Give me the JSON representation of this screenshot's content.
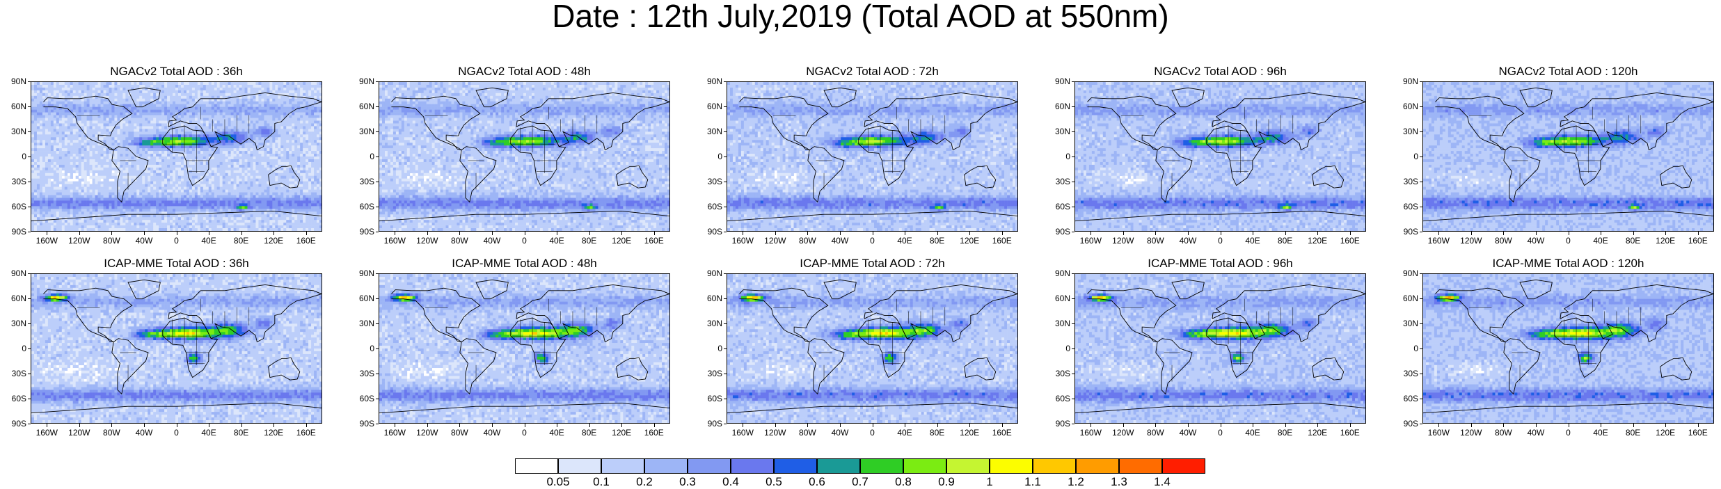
{
  "title": "Date : 12th July,2019 (Total AOD at 550nm)",
  "lat_labels": [
    "90N",
    "60N",
    "30N",
    "0",
    "30S",
    "60S",
    "90S"
  ],
  "lon_labels": [
    "160W",
    "120W",
    "80W",
    "40W",
    "0",
    "40E",
    "80E",
    "120E",
    "160E"
  ],
  "panels": [
    {
      "title": "NGACv2 Total AOD : 36h"
    },
    {
      "title": "NGACv2 Total AOD : 48h"
    },
    {
      "title": "NGACv2 Total AOD : 72h"
    },
    {
      "title": "NGACv2 Total AOD : 96h"
    },
    {
      "title": "NGACv2 Total AOD : 120h"
    },
    {
      "title": "ICAP-MME Total AOD : 36h"
    },
    {
      "title": "ICAP-MME Total AOD : 48h"
    },
    {
      "title": "ICAP-MME Total AOD : 72h"
    },
    {
      "title": "ICAP-MME Total AOD : 96h"
    },
    {
      "title": "ICAP-MME Total AOD : 120h"
    }
  ],
  "colorbar": {
    "labels": [
      "0.05",
      "0.1",
      "0.2",
      "0.3",
      "0.4",
      "0.5",
      "0.6",
      "0.7",
      "0.8",
      "0.9",
      "1",
      "1.1",
      "1.2",
      "1.3",
      "1.4"
    ],
    "colors": [
      "#ffffff",
      "#dce6fb",
      "#bccefa",
      "#9db5f6",
      "#8299f2",
      "#6a78ee",
      "#1f5ee6",
      "#1a9a96",
      "#2fcd25",
      "#7bec12",
      "#c5f531",
      "#fcfd00",
      "#ffc800",
      "#ff9c00",
      "#ff6c00",
      "#ff1e00"
    ]
  }
}
